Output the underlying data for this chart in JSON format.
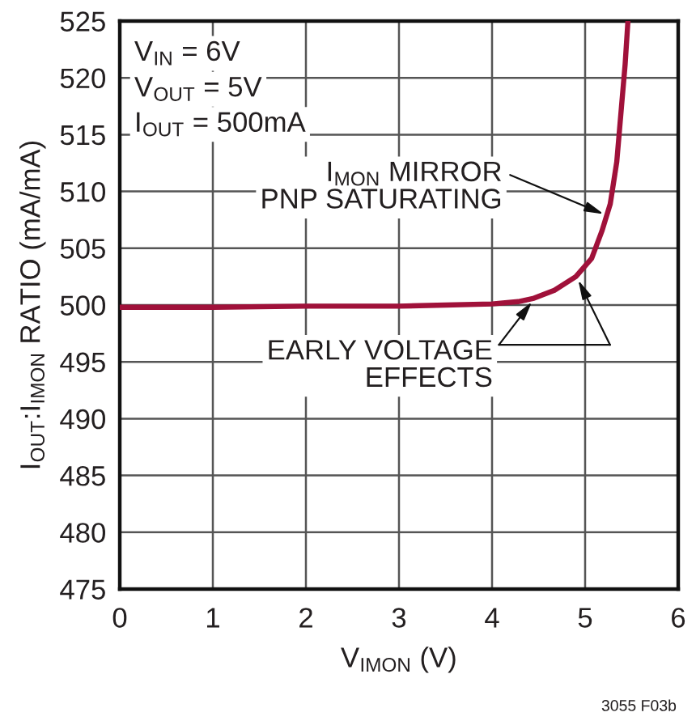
{
  "chart_data": {
    "type": "line",
    "xlabel": "V$_{IMON}$ (V)",
    "ylabel": "I$_{OUT}$:I$_{IMON}$ RATIO (mA/mA)",
    "x": [
      0,
      1,
      2,
      3,
      3.5,
      4,
      4.28,
      4.45,
      4.67,
      4.9,
      5.07,
      5.18,
      5.27,
      5.34,
      5.39,
      5.43,
      5.46
    ],
    "series": [
      {
        "color": "#a0113a",
        "values": [
          499.8,
          499.8,
          499.9,
          499.9,
          500.0,
          500.1,
          500.3,
          500.6,
          501.3,
          502.5,
          504.1,
          506.5,
          508.9,
          512.6,
          517.4,
          521.2,
          525
        ]
      }
    ],
    "xlim": [
      0,
      6
    ],
    "ylim": [
      475,
      525
    ],
    "xticks": [
      0,
      1,
      2,
      3,
      4,
      5,
      6
    ],
    "yticks": [
      475,
      480,
      485,
      490,
      495,
      500,
      505,
      510,
      515,
      520,
      525
    ],
    "grid": true,
    "annotations": [
      "V$_{IN}$ = 6V",
      "V$_{OUT}$ = 5V",
      "I$_{OUT}$ = 500mA",
      {
        "text": "I$_{MON}$ MIRROR\nPNP SATURATING",
        "x": 5.2,
        "y": 508
      },
      {
        "text": "EARLY VOLTAGE\nEFFECTS",
        "x": 4.43,
        "y": 500.3
      },
      "3055 F03b"
    ]
  }
}
